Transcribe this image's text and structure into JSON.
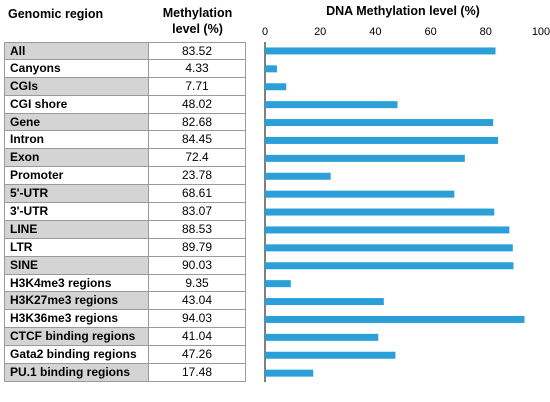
{
  "table": {
    "header_region": "Genomic region",
    "header_level_line1": "Methylation",
    "header_level_line2": "level (%)"
  },
  "chart_data": {
    "type": "bar",
    "orientation": "horizontal",
    "title": "DNA Methylation level (%)",
    "categories": [
      "All",
      "Canyons",
      "CGIs",
      "CGI shore",
      "Gene",
      "Intron",
      "Exon",
      "Promoter",
      "5'-UTR",
      "3'-UTR",
      "LINE",
      "LTR",
      "SINE",
      "H3K4me3 regions",
      "H3K27me3 regions",
      "H3K36me3 regions",
      "CTCF binding regions",
      "Gata2 binding regions",
      "PU.1 binding regions"
    ],
    "values": [
      83.52,
      4.33,
      7.71,
      48.02,
      82.68,
      84.45,
      72.4,
      23.78,
      68.61,
      83.07,
      88.53,
      89.79,
      90.03,
      9.35,
      43.04,
      94.03,
      41.04,
      47.26,
      17.48
    ],
    "labels": [
      "83.52",
      "4.33",
      "7.71",
      "48.02",
      "82.68",
      "84.45",
      "72.4",
      "23.78",
      "68.61",
      "83.07",
      "88.53",
      "89.79",
      "90.03",
      "9.35",
      "43.04",
      "94.03",
      "41.04",
      "47.26",
      "17.48"
    ],
    "shaded_rows": [
      0,
      2,
      4,
      6,
      8,
      10,
      12,
      14,
      16,
      18
    ],
    "xlim": [
      0,
      100
    ],
    "xticks": [
      "0",
      "20",
      "40",
      "60",
      "80",
      "100"
    ],
    "bar_color": "#2a9fd8",
    "grid": false,
    "axis_position": "top"
  }
}
